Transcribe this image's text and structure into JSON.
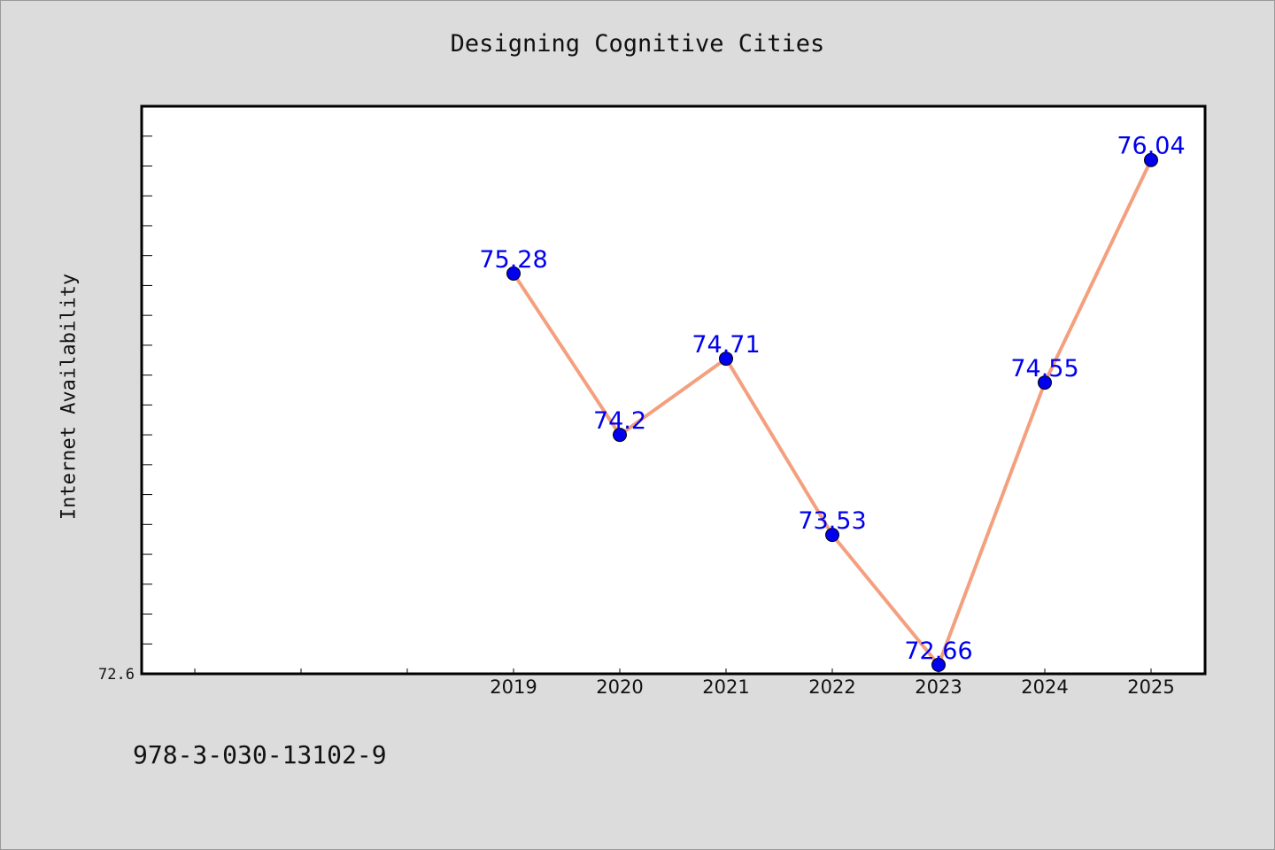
{
  "chart_data": {
    "type": "line",
    "title": "Designing Cognitive Cities",
    "ylabel": "Internet Availability",
    "xlabel": "",
    "x": [
      "2019",
      "2020",
      "2021",
      "2022",
      "2023",
      "2024",
      "2025"
    ],
    "series": [
      {
        "values": [
          75.28,
          74.2,
          74.71,
          73.53,
          72.66,
          74.55,
          76.04
        ],
        "labels": [
          "75.28",
          "74.2",
          "74.71",
          "73.53",
          "72.66",
          "74.55",
          "76.04"
        ]
      }
    ],
    "ylim": [
      72.6,
      76.4
    ],
    "y_tick_label": "72.6",
    "grid": false,
    "line_color": "#f4a07e",
    "marker_color": "#0000ee",
    "label_color": "#0000ee"
  },
  "footer": {
    "isbn": "978-3-030-13102-9"
  }
}
